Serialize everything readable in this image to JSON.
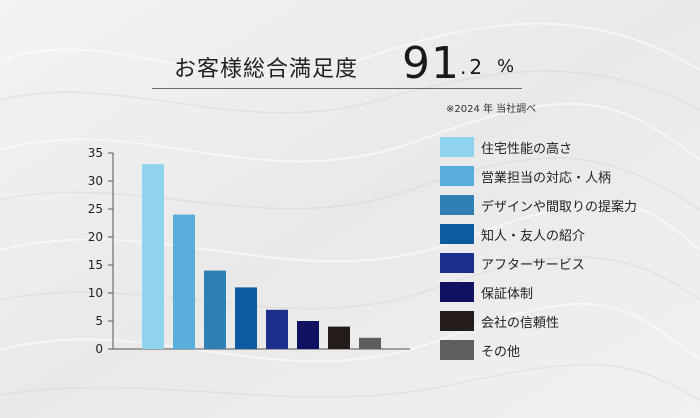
{
  "headline": {
    "label": "お客様総合満足度",
    "value_int": "91",
    "value_dec": ".2",
    "unit": "%"
  },
  "source_note": "※2024 年 当社調べ",
  "colors": {
    "background": "#eeeeee",
    "axis": "#555555",
    "text": "#222222"
  },
  "chart_data": {
    "type": "bar",
    "categories": [
      "住宅性能の高さ",
      "営業担当の対応・人柄",
      "デザインや間取りの提案力",
      "知人・友人の紹介",
      "アフターサービス",
      "保証体制",
      "会社の信頼性",
      "その他"
    ],
    "values": [
      33,
      24,
      14,
      11,
      7,
      5,
      4,
      2
    ],
    "colors": [
      "#8fd3ee",
      "#5aaedb",
      "#2f7fb5",
      "#0d5aa0",
      "#1c2f8c",
      "#0f1260",
      "#231c18",
      "#5e5e5e"
    ],
    "yticks": [
      0,
      5,
      10,
      15,
      20,
      25,
      30,
      35
    ],
    "ylim": [
      0,
      35
    ],
    "title": "",
    "xlabel": "",
    "ylabel": "",
    "legend": "right",
    "grid": false
  }
}
